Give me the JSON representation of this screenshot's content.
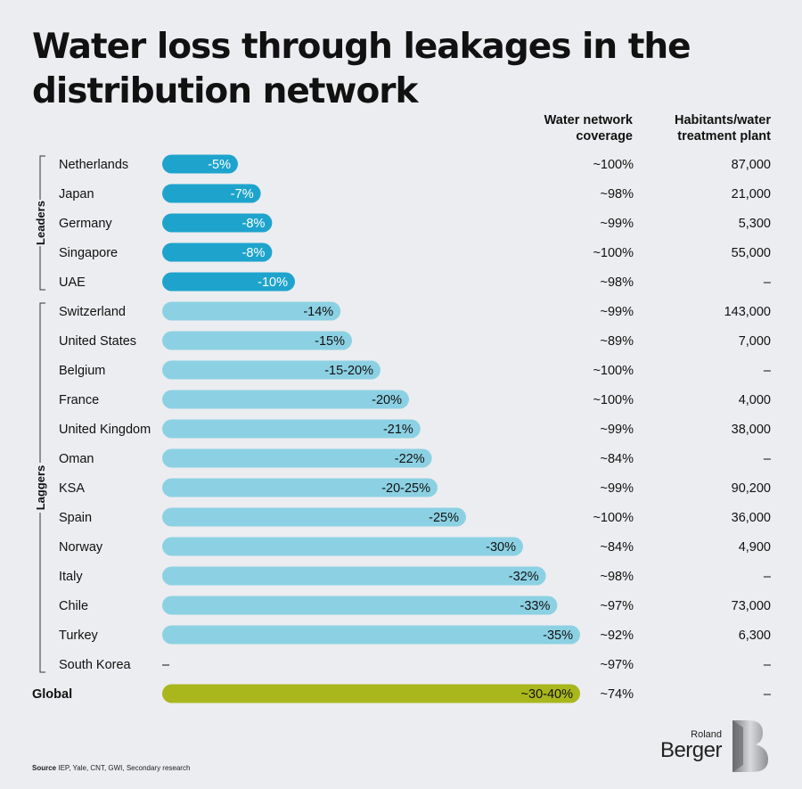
{
  "title": "Water loss through leakages in the distribution network",
  "columns": {
    "coverage": "Water network coverage",
    "plants": "Habitants/water treatment plant"
  },
  "groups": {
    "leaders": "Leaders",
    "laggers": "Laggers"
  },
  "source": {
    "label": "Source",
    "text": "IEP, Yale, CNT, GWI, Secondary research"
  },
  "brand": {
    "line1": "Roland",
    "line2": "Berger"
  },
  "colors": {
    "leaders": "#1ea4cc",
    "laggers": "#8cd1e3",
    "global": "#a9b71d",
    "text": "#111111",
    "background": "#ecedf0"
  },
  "chart_data": {
    "type": "bar",
    "orientation": "horizontal",
    "value_unit": "% water loss",
    "rows": [
      {
        "country": "Netherlands",
        "group": "leaders",
        "value": 5,
        "label": "-5%",
        "coverage": "~100%",
        "plants": "87,000"
      },
      {
        "country": "Japan",
        "group": "leaders",
        "value": 7,
        "label": "-7%",
        "coverage": "~98%",
        "plants": "21,000"
      },
      {
        "country": "Germany",
        "group": "leaders",
        "value": 8,
        "label": "-8%",
        "coverage": "~99%",
        "plants": "5,300"
      },
      {
        "country": "Singapore",
        "group": "leaders",
        "value": 8,
        "label": "-8%",
        "coverage": "~100%",
        "plants": "55,000"
      },
      {
        "country": "UAE",
        "group": "leaders",
        "value": 10,
        "label": "-10%",
        "coverage": "~98%",
        "plants": "–"
      },
      {
        "country": "Switzerland",
        "group": "laggers",
        "value": 14,
        "label": "-14%",
        "coverage": "~99%",
        "plants": "143,000"
      },
      {
        "country": "United States",
        "group": "laggers",
        "value": 15,
        "label": "-15%",
        "coverage": "~89%",
        "plants": "7,000"
      },
      {
        "country": "Belgium",
        "group": "laggers",
        "value": 17.5,
        "label": "-15-20%",
        "coverage": "~100%",
        "plants": "–"
      },
      {
        "country": "France",
        "group": "laggers",
        "value": 20,
        "label": "-20%",
        "coverage": "~100%",
        "plants": "4,000"
      },
      {
        "country": "United Kingdom",
        "group": "laggers",
        "value": 21,
        "label": "-21%",
        "coverage": "~99%",
        "plants": "38,000"
      },
      {
        "country": "Oman",
        "group": "laggers",
        "value": 22,
        "label": "-22%",
        "coverage": "~84%",
        "plants": "–"
      },
      {
        "country": "KSA",
        "group": "laggers",
        "value": 22.5,
        "label": "-20-25%",
        "coverage": "~99%",
        "plants": "90,200"
      },
      {
        "country": "Spain",
        "group": "laggers",
        "value": 25,
        "label": "-25%",
        "coverage": "~100%",
        "plants": "36,000"
      },
      {
        "country": "Norway",
        "group": "laggers",
        "value": 30,
        "label": "-30%",
        "coverage": "~84%",
        "plants": "4,900"
      },
      {
        "country": "Italy",
        "group": "laggers",
        "value": 32,
        "label": "-32%",
        "coverage": "~98%",
        "plants": "–"
      },
      {
        "country": "Chile",
        "group": "laggers",
        "value": 33,
        "label": "-33%",
        "coverage": "~97%",
        "plants": "73,000"
      },
      {
        "country": "Turkey",
        "group": "laggers",
        "value": 35,
        "label": "-35%",
        "coverage": "~92%",
        "plants": "6,300"
      },
      {
        "country": "South Korea",
        "group": "laggers",
        "value": null,
        "label": "–",
        "coverage": "~97%",
        "plants": "–"
      },
      {
        "country": "Global",
        "group": "global",
        "value": 35,
        "label": "~30-40%",
        "coverage": "~74%",
        "plants": "–"
      }
    ]
  }
}
